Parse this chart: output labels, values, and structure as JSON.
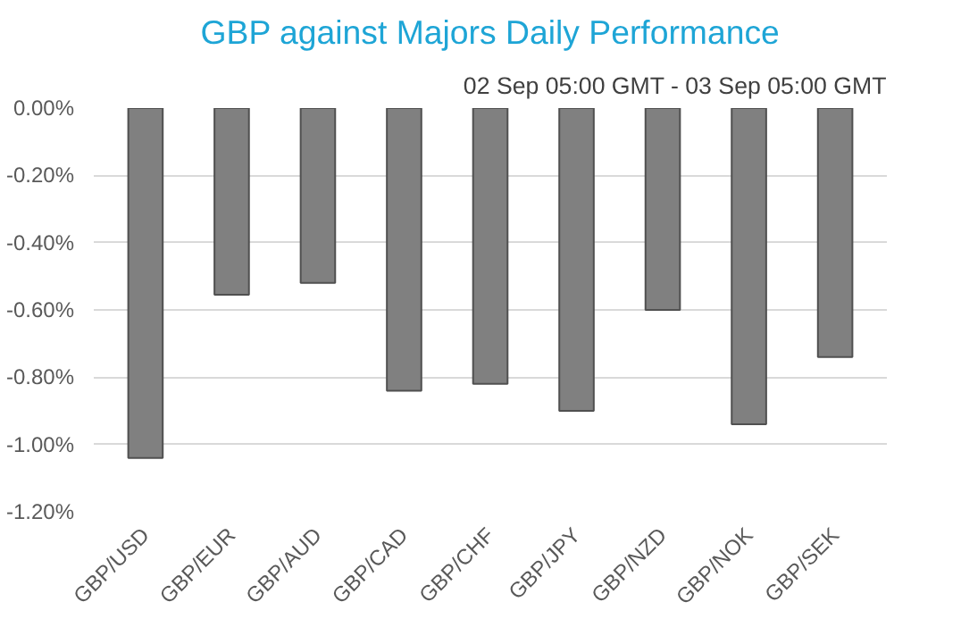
{
  "chart_data": {
    "type": "bar",
    "title": "GBP against Majors Daily Performance",
    "subtitle": "02 Sep 05:00 GMT - 03 Sep 05:00 GMT",
    "categories": [
      "GBP/USD",
      "GBP/EUR",
      "GBP/AUD",
      "GBP/CAD",
      "GBP/CHF",
      "GBP/JPY",
      "GBP/NZD",
      "GBP/NOK",
      "GBP/SEK"
    ],
    "values": [
      -1.04,
      -0.555,
      -0.52,
      -0.84,
      -0.82,
      -0.9,
      -0.6,
      -0.94,
      -0.74
    ],
    "color": "#808080",
    "ylim": [
      -1.2,
      0
    ],
    "yticks": [
      {
        "value": 0,
        "label": "0.00%"
      },
      {
        "value": -0.2,
        "label": "-0.20%"
      },
      {
        "value": -0.4,
        "label": "-0.40%"
      },
      {
        "value": -0.6,
        "label": "-0.60%"
      },
      {
        "value": -0.8,
        "label": "-0.80%"
      },
      {
        "value": -1.0,
        "label": "-1.00%"
      },
      {
        "value": -1.2,
        "label": "-1.20%"
      }
    ],
    "grid": "y"
  }
}
